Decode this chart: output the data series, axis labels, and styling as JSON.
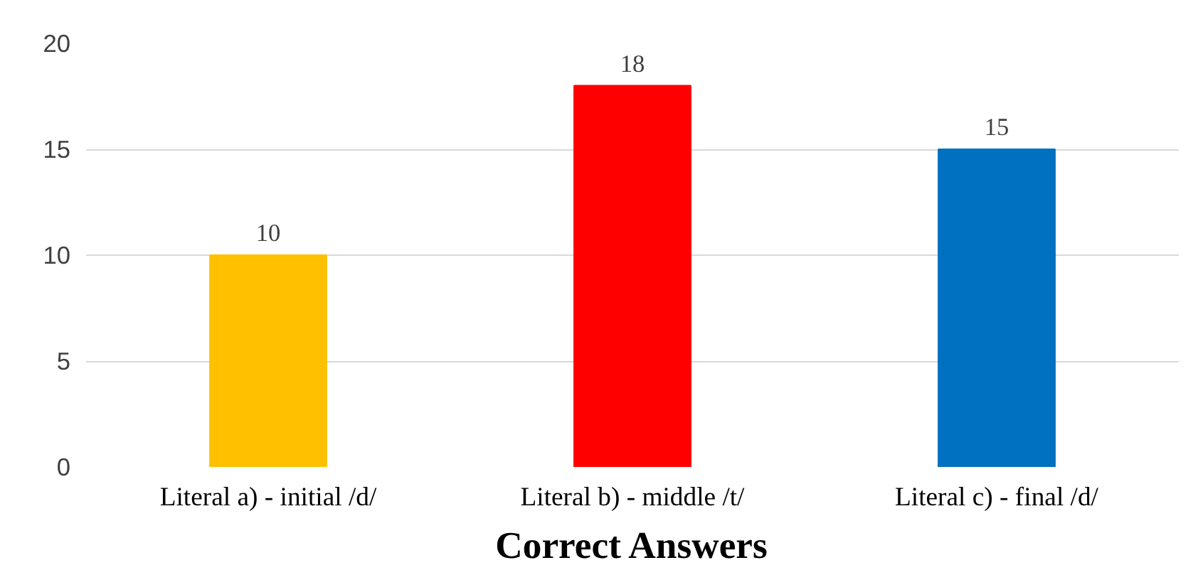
{
  "chart_data": {
    "type": "bar",
    "xlabel": "Correct Answers",
    "categories": [
      "Literal a) - initial /d/",
      "Literal b) - middle /t/",
      "Literal c) - final /d/"
    ],
    "values": [
      10,
      18,
      15
    ],
    "colors": [
      "#ffc000",
      "#ff0000",
      "#0070c0"
    ],
    "ylim": [
      0,
      20
    ],
    "yticks": [
      0,
      5,
      10,
      15,
      20
    ],
    "grid": "y",
    "data_labels": true
  }
}
